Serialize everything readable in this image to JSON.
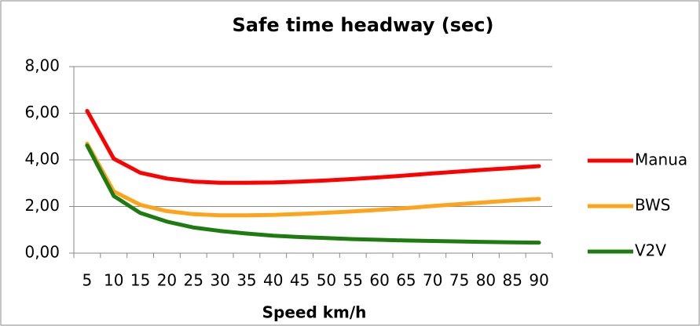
{
  "chart_data": {
    "type": "line",
    "title": "Safe time headway (sec)",
    "x_label": "Speed km/h",
    "categories": [
      "5",
      "10",
      "15",
      "20",
      "25",
      "30",
      "35",
      "40",
      "45",
      "50",
      "55",
      "60",
      "65",
      "70",
      "75",
      "80",
      "85",
      "90"
    ],
    "series": [
      {
        "name": "Manua",
        "color": "#ff0000",
        "values": [
          6.1,
          4.05,
          3.45,
          3.2,
          3.07,
          3.02,
          3.02,
          3.03,
          3.07,
          3.12,
          3.18,
          3.25,
          3.33,
          3.42,
          3.5,
          3.58,
          3.65,
          3.73
        ]
      },
      {
        "name": "BWS",
        "color": "#ffa31a",
        "values": [
          4.7,
          2.65,
          2.07,
          1.8,
          1.67,
          1.62,
          1.62,
          1.64,
          1.68,
          1.73,
          1.79,
          1.86,
          1.93,
          2.02,
          2.1,
          2.18,
          2.26,
          2.33
        ]
      },
      {
        "name": "V2V",
        "color": "#1e7b10",
        "values": [
          4.62,
          2.45,
          1.72,
          1.35,
          1.1,
          0.95,
          0.84,
          0.75,
          0.69,
          0.65,
          0.6,
          0.57,
          0.54,
          0.52,
          0.5,
          0.48,
          0.46,
          0.45
        ]
      }
    ],
    "ylim": [
      0,
      8
    ],
    "yticks": [
      {
        "value": 0,
        "label": "0,00"
      },
      {
        "value": 2,
        "label": "2,00"
      },
      {
        "value": 4,
        "label": "4,00"
      },
      {
        "value": 6,
        "label": "6,00"
      },
      {
        "value": 8,
        "label": "8,00"
      }
    ],
    "grid": true,
    "legend": "right"
  }
}
